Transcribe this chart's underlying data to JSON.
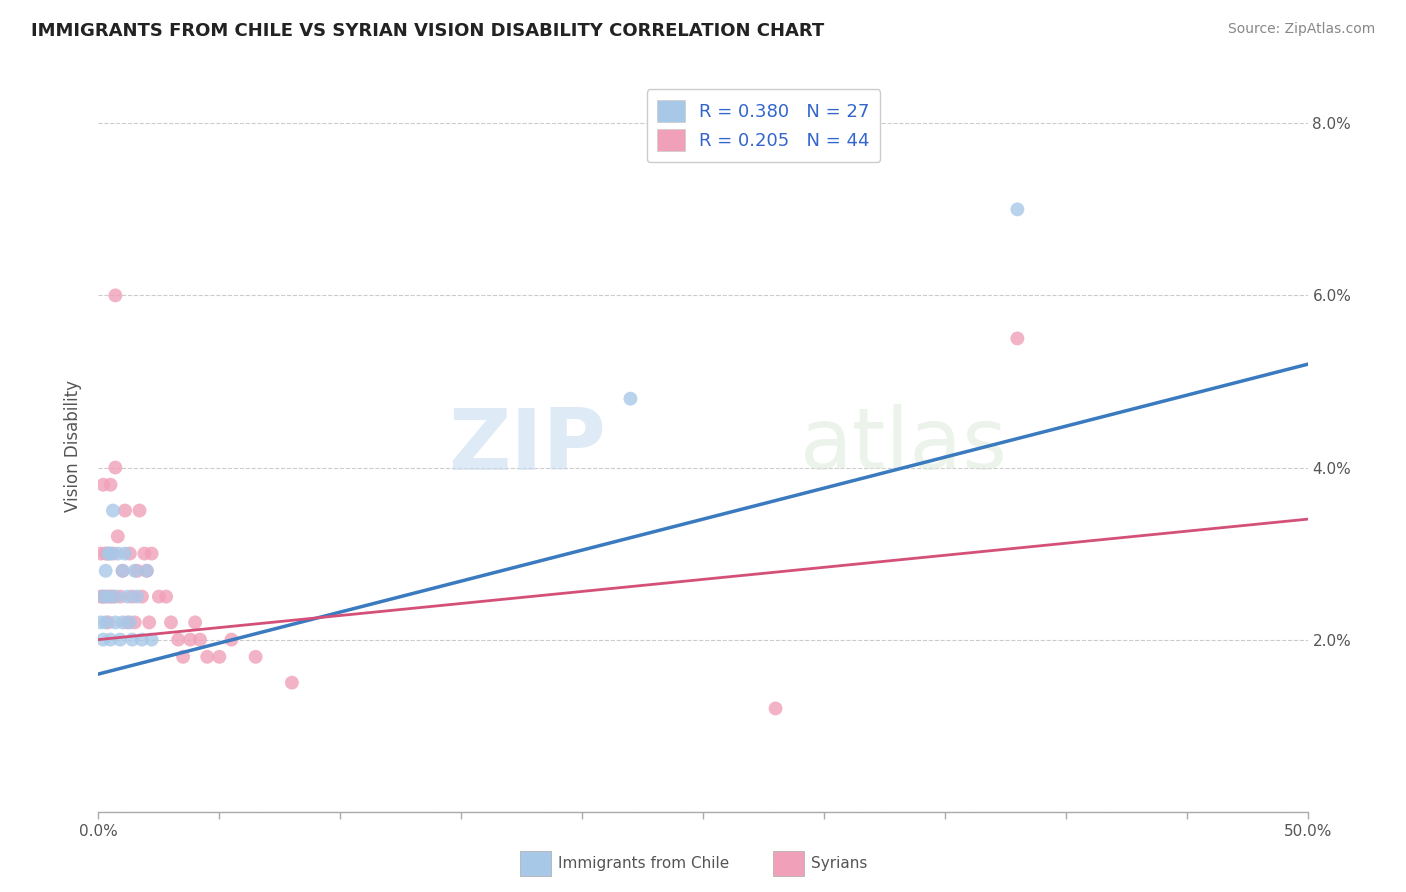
{
  "title": "IMMIGRANTS FROM CHILE VS SYRIAN VISION DISABILITY CORRELATION CHART",
  "source": "Source: ZipAtlas.com",
  "ylabel_label": "Vision Disability",
  "legend_blue_label": "Immigrants from Chile",
  "legend_pink_label": "Syrians",
  "legend_blue_R": "R = 0.380",
  "legend_blue_N": "N = 27",
  "legend_pink_R": "R = 0.205",
  "legend_pink_N": "N = 44",
  "watermark_zip": "ZIP",
  "watermark_atlas": "atlas",
  "title_color": "#222222",
  "axis_color": "#555555",
  "blue_scatter_color": "#a8c8e8",
  "pink_scatter_color": "#f0a0b8",
  "blue_line_color": "#3a7abf",
  "pink_line_color": "#d45078",
  "grid_color": "#cccccc",
  "background_color": "#ffffff",
  "scatter_size": 100,
  "blue_points_x": [
    0.001,
    0.002,
    0.002,
    0.003,
    0.003,
    0.004,
    0.004,
    0.005,
    0.005,
    0.006,
    0.007,
    0.007,
    0.008,
    0.009,
    0.01,
    0.01,
    0.011,
    0.012,
    0.013,
    0.014,
    0.015,
    0.016,
    0.018,
    0.02,
    0.022,
    0.22,
    0.38
  ],
  "blue_points_y": [
    0.022,
    0.025,
    0.02,
    0.028,
    0.022,
    0.025,
    0.03,
    0.02,
    0.03,
    0.035,
    0.025,
    0.022,
    0.03,
    0.02,
    0.022,
    0.028,
    0.03,
    0.025,
    0.022,
    0.02,
    0.028,
    0.025,
    0.02,
    0.028,
    0.02,
    0.048,
    0.07
  ],
  "pink_points_x": [
    0.001,
    0.001,
    0.002,
    0.002,
    0.003,
    0.003,
    0.004,
    0.004,
    0.005,
    0.005,
    0.006,
    0.006,
    0.007,
    0.007,
    0.008,
    0.009,
    0.01,
    0.011,
    0.012,
    0.013,
    0.014,
    0.015,
    0.016,
    0.017,
    0.018,
    0.019,
    0.02,
    0.021,
    0.022,
    0.025,
    0.028,
    0.03,
    0.033,
    0.035,
    0.038,
    0.04,
    0.042,
    0.045,
    0.05,
    0.055,
    0.065,
    0.08,
    0.28,
    0.38
  ],
  "pink_points_y": [
    0.03,
    0.025,
    0.038,
    0.025,
    0.03,
    0.025,
    0.022,
    0.03,
    0.038,
    0.025,
    0.03,
    0.025,
    0.06,
    0.04,
    0.032,
    0.025,
    0.028,
    0.035,
    0.022,
    0.03,
    0.025,
    0.022,
    0.028,
    0.035,
    0.025,
    0.03,
    0.028,
    0.022,
    0.03,
    0.025,
    0.025,
    0.022,
    0.02,
    0.018,
    0.02,
    0.022,
    0.02,
    0.018,
    0.018,
    0.02,
    0.018,
    0.015,
    0.012,
    0.055
  ],
  "xlim": [
    0.0,
    0.5
  ],
  "ylim": [
    0.0,
    0.085
  ],
  "yticks": [
    0.0,
    0.02,
    0.04,
    0.06,
    0.08
  ],
  "ytick_labels_right": [
    "",
    "2.0%",
    "4.0%",
    "6.0%",
    "8.0%"
  ],
  "xticks": [
    0.0,
    0.05,
    0.1,
    0.15,
    0.2,
    0.25,
    0.3,
    0.35,
    0.4,
    0.45,
    0.5
  ],
  "xtick_labels": [
    "0.0%",
    "",
    "",
    "",
    "",
    "",
    "",
    "",
    "",
    "",
    "50.0%"
  ],
  "blue_line_y_start": 0.016,
  "blue_line_y_end": 0.052,
  "pink_line_y_start": 0.02,
  "pink_line_y_end": 0.034
}
